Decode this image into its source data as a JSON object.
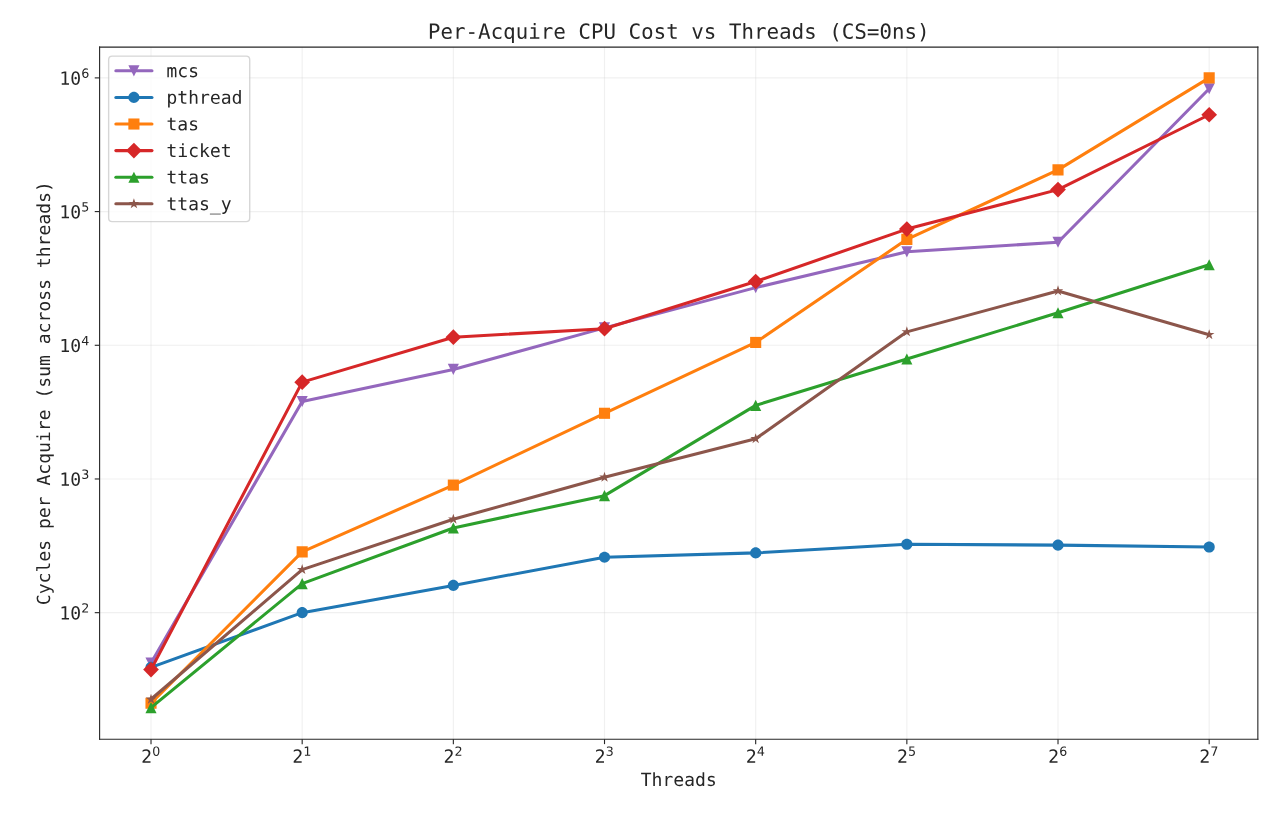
{
  "chart_data": {
    "type": "line",
    "title": "Per-Acquire CPU Cost vs Threads (CS=0ns)",
    "xlabel": "Threads",
    "ylabel": "Cycles per Acquire (sum across threads)",
    "x": [
      1,
      2,
      4,
      8,
      16,
      32,
      64,
      128
    ],
    "log": "xy",
    "grid": true,
    "legend": "top left",
    "xlim": [
      0.79,
      160
    ],
    "ylim": [
      11.3,
      1700000
    ],
    "xticks": [
      {
        "value": 1,
        "label": "2$^{0}$"
      },
      {
        "value": 2,
        "label": "2$^{1}$"
      },
      {
        "value": 4,
        "label": "2$^{2}$"
      },
      {
        "value": 8,
        "label": "2$^{3}$"
      },
      {
        "value": 16,
        "label": "2$^{4}$"
      },
      {
        "value": 32,
        "label": "2$^{5}$"
      },
      {
        "value": 64,
        "label": "2$^{6}$"
      },
      {
        "value": 128,
        "label": "2$^{7}$"
      }
    ],
    "yticks": [
      {
        "value": 100,
        "label": "10$^{2}$"
      },
      {
        "value": 1000,
        "label": "10$^{3}$"
      },
      {
        "value": 10000,
        "label": "10$^{4}$"
      },
      {
        "value": 100000,
        "label": "10$^{5}$"
      },
      {
        "value": 1000000,
        "label": "10$^{6}$"
      }
    ],
    "series": [
      {
        "name": "mcs",
        "color": "#9467bd",
        "marker": "triangle_down",
        "values": [
          42,
          3800,
          6600,
          13500,
          27000,
          50000,
          59000,
          830000
        ]
      },
      {
        "name": "pthread",
        "color": "#1f77b4",
        "marker": "circle",
        "values": [
          39,
          100,
          160,
          260,
          280,
          325,
          320,
          310
        ]
      },
      {
        "name": "tas",
        "color": "#ff7f0e",
        "marker": "square",
        "values": [
          21,
          285,
          900,
          3100,
          10500,
          62000,
          205000,
          1000000
        ]
      },
      {
        "name": "ticket",
        "color": "#d62728",
        "marker": "diamond",
        "values": [
          37.5,
          5300,
          11500,
          13300,
          30000,
          74000,
          146000,
          530000
        ]
      },
      {
        "name": "ttas",
        "color": "#2ca02c",
        "marker": "triangle",
        "values": [
          19.5,
          165,
          430,
          750,
          3550,
          7900,
          17500,
          40000
        ]
      },
      {
        "name": "ttas_y",
        "color": "#8c564b",
        "marker": "star",
        "values": [
          22.5,
          210,
          500,
          1030,
          2000,
          12600,
          25500,
          12000
        ]
      }
    ]
  }
}
